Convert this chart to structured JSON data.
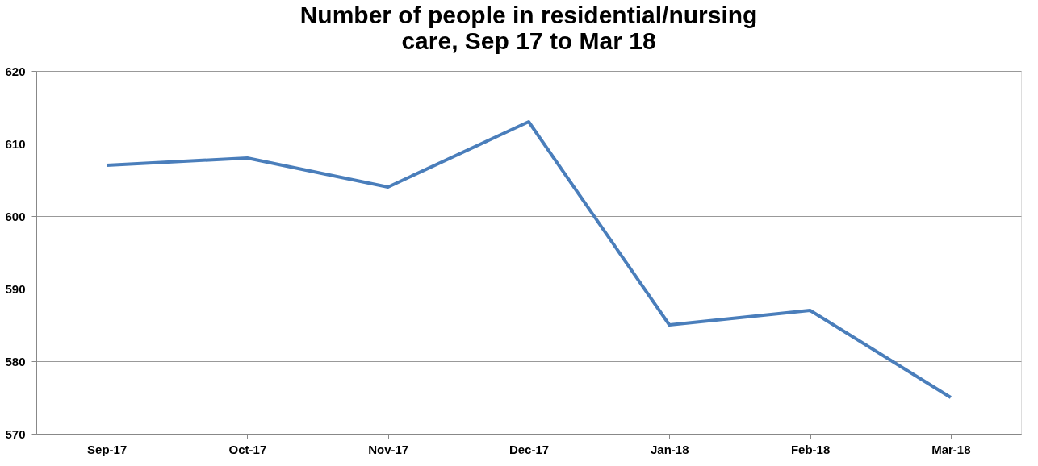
{
  "chart_data": {
    "type": "line",
    "title": [
      "Number of people in residential/nursing",
      "care, Sep 17 to Mar 18"
    ],
    "categories": [
      "Sep-17",
      "Oct-17",
      "Nov-17",
      "Dec-17",
      "Jan-18",
      "Feb-18",
      "Mar-18"
    ],
    "series": [
      {
        "color": "#4a7ebb",
        "values": [
          607,
          608,
          604,
          613,
          585,
          587,
          575
        ]
      }
    ],
    "ylim": [
      570,
      620
    ],
    "yticks": [
      570,
      580,
      590,
      600,
      610,
      620
    ],
    "grid": "y",
    "marker": "none",
    "line_style": "solid"
  }
}
